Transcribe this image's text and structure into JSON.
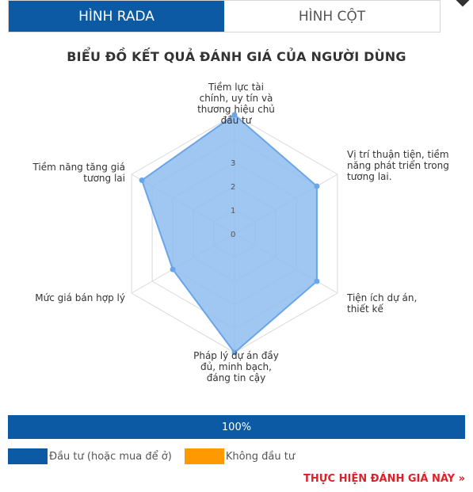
{
  "tabs": [
    {
      "label": "HÌNH RADA",
      "active": true
    },
    {
      "label": "HÌNH CỘT",
      "active": false
    }
  ],
  "chart_data": {
    "type": "radar",
    "title": "BIỂU ĐỒ KẾT QUẢ ĐÁNH GIÁ CỦA NGƯỜI DÙNG",
    "axes": [
      "Tiềm lực tài chính, uy tín và thương hiệu chủ đầu tư",
      "Vị trí thuận tiện, tiềm năng phát triển trong tương lai.",
      "Tiện ích dự án, thiết kế",
      "Pháp lý dự án đầy đủ, minh bạch, đáng tin cậy",
      "Mức giá bán hợp lý",
      "Tiềm năng tăng giá tương lai"
    ],
    "ticks": [
      "0",
      "1",
      "2",
      "3"
    ],
    "rmax": 5,
    "series": [
      {
        "values": [
          5,
          4,
          4,
          5,
          3,
          4.5
        ]
      }
    ],
    "colors": {
      "fill": "#8ebdf0",
      "stroke": "#6aa5e8",
      "grid": "#d9d9d9"
    }
  },
  "progress": {
    "label": "100%",
    "value": 1.0
  },
  "legend": [
    {
      "label": "Đầu tư (hoặc mua để ở)",
      "color": "#0b5aa3"
    },
    {
      "label": "Không đầu tư",
      "color": "#ff9900"
    }
  ],
  "cta_label": "THỰC HIỆN ĐÁNH GIÁ NÀY »"
}
